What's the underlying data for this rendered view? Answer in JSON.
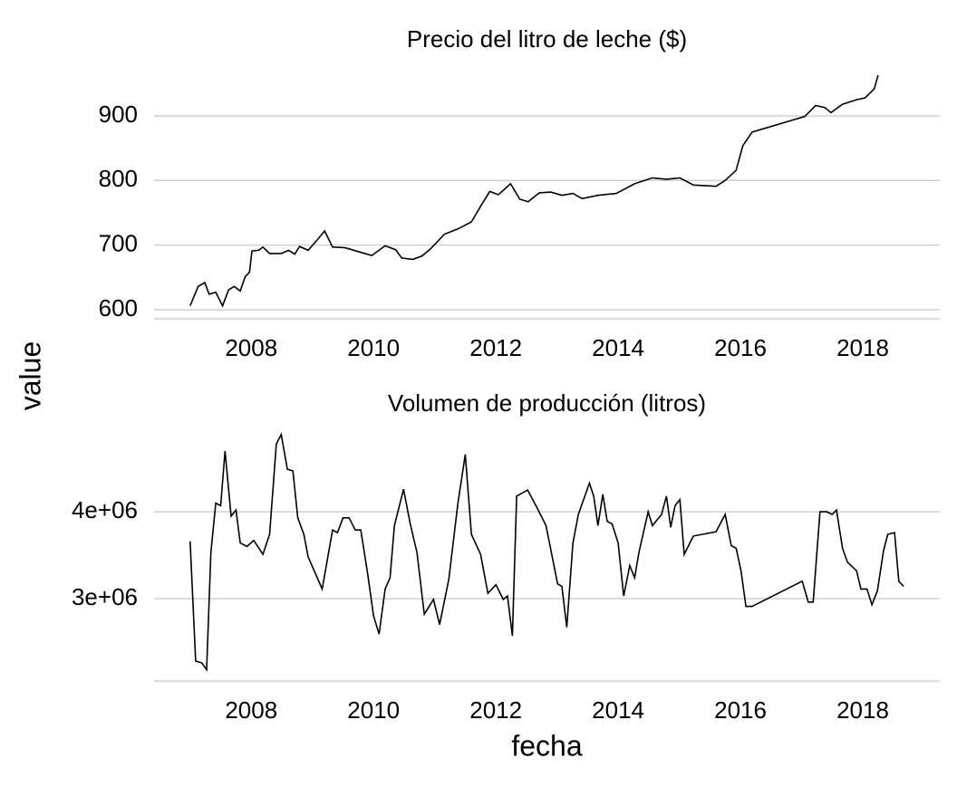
{
  "chart_data": [
    {
      "type": "line",
      "title": "Precio del litro de leche ($)",
      "ylabel": "value",
      "color": "#000000",
      "grid": true,
      "xlim": [
        2006.41,
        2019.26
      ],
      "ylim": [
        586,
        970
      ],
      "xticks": [
        2008,
        2010,
        2012,
        2014,
        2016,
        2018
      ],
      "yticks": [
        600,
        700,
        800,
        900
      ],
      "x": [
        2007.0,
        2007.13,
        2007.24,
        2007.31,
        2007.42,
        2007.53,
        2007.63,
        2007.72,
        2007.82,
        2007.9,
        2007.97,
        2008.01,
        2008.12,
        2008.19,
        2008.3,
        2008.49,
        2008.61,
        2008.71,
        2008.79,
        2008.93,
        2009.08,
        2009.2,
        2009.33,
        2009.53,
        2009.75,
        2009.97,
        2010.19,
        2010.36,
        2010.46,
        2010.64,
        2010.79,
        2010.93,
        2011.16,
        2011.38,
        2011.6,
        2011.75,
        2011.9,
        2012.04,
        2012.24,
        2012.39,
        2012.53,
        2012.71,
        2012.9,
        2013.08,
        2013.26,
        2013.41,
        2013.67,
        2013.97,
        2014.27,
        2014.56,
        2014.79,
        2015.01,
        2015.23,
        2015.6,
        2015.75,
        2015.93,
        2016.04,
        2016.19,
        2017.05,
        2017.23,
        2017.38,
        2017.48,
        2017.67,
        2017.9,
        2018.04,
        2018.19,
        2018.25
      ],
      "values": [
        606,
        636,
        642,
        624,
        627,
        606,
        631,
        636,
        629,
        651,
        658,
        691,
        692,
        697,
        687,
        687,
        692,
        686,
        698,
        692,
        708,
        722,
        697,
        696,
        690,
        684,
        699,
        693,
        680,
        678,
        683,
        694,
        717,
        725,
        736,
        760,
        783,
        778,
        795,
        771,
        767,
        781,
        782,
        777,
        780,
        772,
        777,
        780,
        795,
        804,
        802,
        804,
        793,
        791,
        800,
        816,
        854,
        875,
        899,
        916,
        913,
        905,
        918,
        925,
        928,
        942,
        963
      ]
    },
    {
      "type": "line",
      "title": "Volumen de producción (litros)",
      "xlabel": "fecha",
      "color": "#000000",
      "grid": true,
      "xlim": [
        2006.41,
        2019.26
      ],
      "ylim": [
        2050000,
        4940000
      ],
      "xticks": [
        2008,
        2010,
        2012,
        2014,
        2016,
        2018
      ],
      "yticks": [
        {
          "value": 3000000,
          "label": "3e+06"
        },
        {
          "value": 4000000,
          "label": "4e+06"
        }
      ],
      "x": [
        2007.0,
        2007.09,
        2007.19,
        2007.27,
        2007.34,
        2007.42,
        2007.5,
        2007.57,
        2007.67,
        2007.75,
        2007.82,
        2007.93,
        2008.04,
        2008.19,
        2008.3,
        2008.41,
        2008.49,
        2008.59,
        2008.68,
        2008.76,
        2008.86,
        2008.93,
        2009.16,
        2009.33,
        2009.41,
        2009.5,
        2009.6,
        2009.7,
        2009.79,
        2009.9,
        2010.0,
        2010.09,
        2010.19,
        2010.27,
        2010.34,
        2010.49,
        2010.6,
        2010.71,
        2010.83,
        2010.98,
        2011.08,
        2011.23,
        2011.38,
        2011.5,
        2011.6,
        2011.75,
        2011.87,
        2012.0,
        2012.12,
        2012.19,
        2012.27,
        2012.34,
        2012.52,
        2012.67,
        2012.82,
        2013.01,
        2013.08,
        2013.16,
        2013.26,
        2013.35,
        2013.53,
        2013.6,
        2013.67,
        2013.75,
        2013.82,
        2013.9,
        2014.0,
        2014.09,
        2014.19,
        2014.27,
        2014.34,
        2014.49,
        2014.56,
        2014.71,
        2014.79,
        2014.86,
        2014.93,
        2015.01,
        2015.08,
        2015.23,
        2015.6,
        2015.75,
        2015.85,
        2015.93,
        2016.01,
        2016.09,
        2016.19,
        2017.01,
        2017.11,
        2017.19,
        2017.3,
        2017.41,
        2017.5,
        2017.57,
        2017.67,
        2017.75,
        2017.9,
        2017.97,
        2018.07,
        2018.15,
        2018.24,
        2018.34,
        2018.41,
        2018.52,
        2018.59,
        2018.67
      ],
      "values": [
        3660000,
        2280000,
        2260000,
        2180000,
        3530000,
        4100000,
        4070000,
        4700000,
        3950000,
        4020000,
        3640000,
        3600000,
        3670000,
        3510000,
        3740000,
        4780000,
        4890000,
        4490000,
        4470000,
        3930000,
        3740000,
        3480000,
        3110000,
        3790000,
        3760000,
        3930000,
        3930000,
        3790000,
        3790000,
        3300000,
        2800000,
        2590000,
        3110000,
        3240000,
        3840000,
        4260000,
        3860000,
        3530000,
        2820000,
        2990000,
        2700000,
        3220000,
        4100000,
        4660000,
        3740000,
        3510000,
        3060000,
        3160000,
        2990000,
        3030000,
        2570000,
        4180000,
        4250000,
        4050000,
        3840000,
        3170000,
        3140000,
        2670000,
        3640000,
        3970000,
        4330000,
        4180000,
        3840000,
        4200000,
        3890000,
        3860000,
        3640000,
        3030000,
        3380000,
        3240000,
        3530000,
        4000000,
        3840000,
        3970000,
        4180000,
        3820000,
        4070000,
        4140000,
        3510000,
        3720000,
        3770000,
        3970000,
        3610000,
        3580000,
        3320000,
        2910000,
        2910000,
        3200000,
        2960000,
        2960000,
        4000000,
        4000000,
        3970000,
        4020000,
        3580000,
        3420000,
        3320000,
        3110000,
        3110000,
        2930000,
        3090000,
        3550000,
        3740000,
        3760000,
        3200000,
        3140000
      ]
    }
  ]
}
